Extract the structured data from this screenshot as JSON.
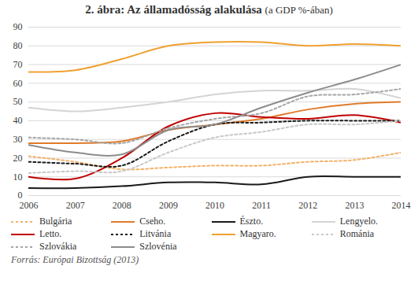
{
  "chart_data": {
    "type": "line",
    "title": "2. ábra: Az államadósság alakulása",
    "subtitle": "(a GDP %-ában)",
    "source": "Forrás: Európai Bizottság (2013)",
    "x": [
      2006,
      2007,
      2008,
      2009,
      2010,
      2011,
      2012,
      2013,
      2014
    ],
    "xlim": [
      2006,
      2014
    ],
    "xticks": [
      2006,
      2007,
      2008,
      2009,
      2010,
      2011,
      2012,
      2013,
      2014
    ],
    "ylim": [
      0,
      90
    ],
    "yticks": [
      0,
      10,
      20,
      30,
      40,
      50,
      60,
      70,
      80,
      90
    ],
    "grid": true,
    "legend": "bottom",
    "series": [
      {
        "name": "Bulgária",
        "color": "#f4b26b",
        "line_style": "dotted",
        "values": [
          21,
          18,
          14,
          15,
          16,
          16,
          18,
          19,
          23
        ]
      },
      {
        "name": "Cseho.",
        "color": "#e07b2a",
        "line_style": "solid",
        "values": [
          28,
          28,
          29,
          35,
          38,
          41,
          46,
          49,
          50
        ]
      },
      {
        "name": "Észto.",
        "color": "#1a1a1a",
        "line_style": "solid",
        "values": [
          4,
          4,
          5,
          7,
          7,
          6,
          10,
          10,
          10
        ]
      },
      {
        "name": "Lengyelo.",
        "color": "#d4d4d4",
        "line_style": "solid",
        "values": [
          47,
          45,
          47,
          50,
          54,
          56,
          56,
          57,
          52
        ]
      },
      {
        "name": "Letto.",
        "color": "#c00000",
        "line_style": "solid",
        "values": [
          10,
          9,
          20,
          37,
          44,
          42,
          41,
          43,
          39
        ]
      },
      {
        "name": "Litvánia",
        "color": "#1a1a1a",
        "line_style": "dotted",
        "values": [
          18,
          17,
          16,
          29,
          38,
          39,
          40,
          40,
          40
        ]
      },
      {
        "name": "Magyaro.",
        "color": "#f0a030",
        "line_style": "solid",
        "values": [
          66,
          67,
          73,
          80,
          82,
          82,
          80,
          81,
          80
        ]
      },
      {
        "name": "Románia",
        "color": "#c8c8c8",
        "line_style": "dotted",
        "values": [
          12,
          13,
          13,
          23,
          31,
          34,
          38,
          38,
          40
        ]
      },
      {
        "name": "Szlovákia",
        "color": "#a6a6a6",
        "line_style": "dotted",
        "values": [
          31,
          30,
          28,
          36,
          41,
          44,
          53,
          54,
          57
        ]
      },
      {
        "name": "Szlovénia",
        "color": "#8c8c8c",
        "line_style": "solid",
        "values": [
          27,
          23,
          22,
          35,
          38,
          47,
          55,
          62,
          70
        ]
      }
    ]
  }
}
